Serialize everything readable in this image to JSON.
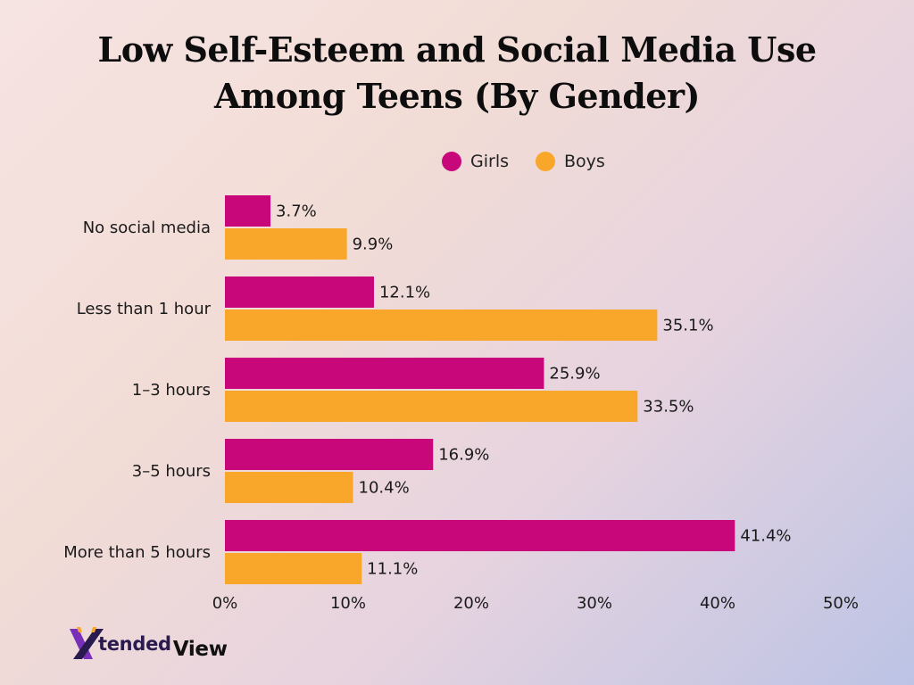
{
  "colors": {
    "girls": "#c8087a",
    "boys": "#f9a72b"
  },
  "logo": {
    "text_a": "tended",
    "text_b": "View"
  },
  "chart_data": {
    "type": "bar",
    "orientation": "horizontal",
    "title_line1": "Low Self-Esteem and Social Media Use",
    "title_line2": "Among Teens (By Gender)",
    "categories": [
      "No social media",
      "Less than 1 hour",
      "1–3 hours",
      "3–5 hours",
      "More than 5 hours"
    ],
    "series": [
      {
        "name": "Girls",
        "values": [
          3.7,
          12.1,
          25.9,
          16.9,
          41.4
        ],
        "labels": [
          "3.7%",
          "12.1%",
          "25.9%",
          "16.9%",
          "41.4%"
        ]
      },
      {
        "name": "Boys",
        "values": [
          9.9,
          35.1,
          33.5,
          10.4,
          11.1
        ],
        "labels": [
          "9.9%",
          "35.1%",
          "33.5%",
          "10.4%",
          "11.1%"
        ]
      }
    ],
    "xlim": [
      0,
      50
    ],
    "xticks": [
      "0%",
      "10%",
      "20%",
      "30%",
      "40%",
      "50%"
    ],
    "legend_position": "top",
    "grid": false
  }
}
